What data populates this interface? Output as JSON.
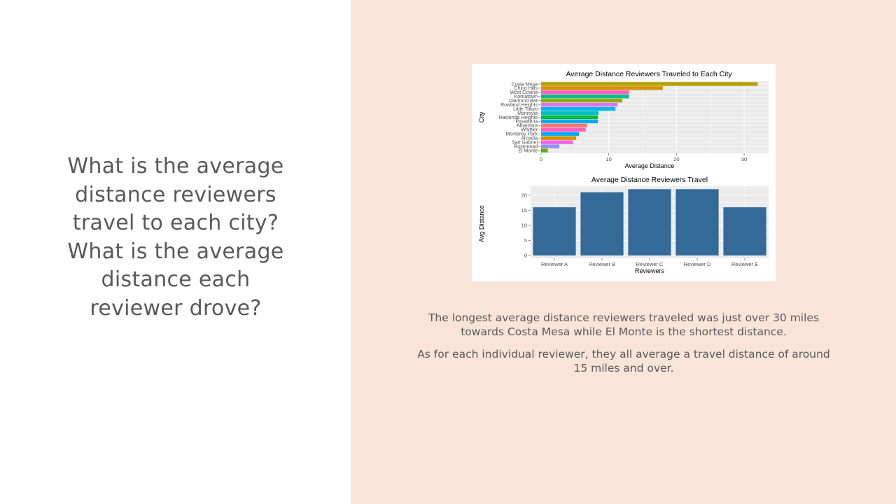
{
  "slide": {
    "question": "What is the average distance reviewers travel to each city? What is the average distance each reviewer drove?",
    "caption_paragraphs": [
      "The longest average distance reviewers traveled was just over 30 miles towards Costa Mesa while El Monte is the shortest distance.",
      "As for each individual reviewer, they all average a travel distance of around 15 miles and over."
    ],
    "colors": {
      "left_background": "#ffffff",
      "right_background": "#f8e4d8",
      "text": "#595959"
    }
  },
  "chart_data": [
    {
      "type": "bar",
      "orientation": "horizontal",
      "title": "Average Distance Reviewers Traveled to Each City",
      "xlabel": "Average Distance",
      "ylabel": "City",
      "xlim": [
        0,
        33.5
      ],
      "xticks": [
        0,
        10,
        20,
        30
      ],
      "grid": true,
      "categories": [
        "Costa Mesa",
        "Chino Hills",
        "West Covina",
        "Koreatown",
        "Diamond Bar",
        "Rowland Heights",
        "Little Tokyo",
        "Monrovia",
        "Hacienda Heights",
        "Pasadena",
        "Alhambra",
        "Whittier",
        "Monterey Park",
        "Arcadia",
        "San Gabriel",
        "Rosemead",
        "El Monte"
      ],
      "values": [
        32.0,
        18.0,
        13.0,
        13.0,
        12.0,
        11.3,
        11.0,
        8.5,
        8.4,
        8.4,
        6.8,
        6.6,
        5.6,
        5.2,
        4.7,
        2.7,
        1.0
      ],
      "colors": [
        "#b8a000",
        "#d39200",
        "#ff61c3",
        "#00c08b",
        "#93aa00",
        "#db72fb",
        "#00b9e3",
        "#00bfc4",
        "#00ba38",
        "#00a9ff",
        "#f8766d",
        "#ff61c3",
        "#00a9ff",
        "#d39200",
        "#f564e3",
        "#9590ff",
        "#5eb300"
      ]
    },
    {
      "type": "bar",
      "title": "Average Distance Reviewers Travel",
      "xlabel": "Reviewers",
      "ylabel": "Avg Distance",
      "ylim": [
        0,
        23
      ],
      "yticks": [
        0,
        5,
        10,
        15,
        20
      ],
      "grid": true,
      "categories": [
        "Reviewer A",
        "Reviewer B",
        "Reviewer C",
        "Reviewer D",
        "Reviewer E"
      ],
      "values": [
        16.0,
        21.0,
        22.0,
        22.0,
        16.0
      ],
      "color": "#336a98"
    }
  ]
}
